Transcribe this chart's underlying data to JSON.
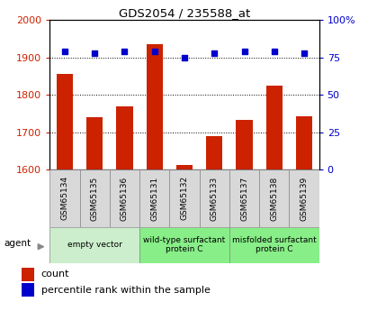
{
  "title": "GDS2054 / 235588_at",
  "samples": [
    "GSM65134",
    "GSM65135",
    "GSM65136",
    "GSM65131",
    "GSM65132",
    "GSM65133",
    "GSM65137",
    "GSM65138",
    "GSM65139"
  ],
  "counts": [
    1855,
    1740,
    1770,
    1935,
    1612,
    1690,
    1733,
    1825,
    1742
  ],
  "percentiles": [
    79,
    78,
    79,
    79,
    75,
    78,
    79,
    79,
    78
  ],
  "ylim_left": [
    1600,
    2000
  ],
  "ylim_right": [
    0,
    100
  ],
  "yticks_left": [
    1600,
    1700,
    1800,
    1900,
    2000
  ],
  "yticks_right": [
    0,
    25,
    50,
    75,
    100
  ],
  "yticklabels_right": [
    "0",
    "25",
    "50",
    "75",
    "100%"
  ],
  "bar_color": "#cc2200",
  "dot_color": "#0000cc",
  "bar_width": 0.55,
  "group_colors": [
    "#cceecc",
    "#88ee88",
    "#88ee88"
  ],
  "group_labels": [
    "empty vector",
    "wild-type surfactant\nprotein C",
    "misfolded surfactant\nprotein C"
  ],
  "group_ranges": [
    [
      0,
      3
    ],
    [
      3,
      6
    ],
    [
      6,
      9
    ]
  ],
  "cell_bg": "#cccccc",
  "agent_label": "agent",
  "legend_count_label": "count",
  "legend_pct_label": "percentile rank within the sample"
}
